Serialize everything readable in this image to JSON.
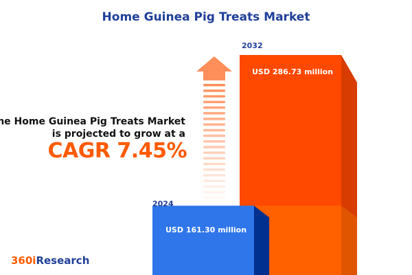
{
  "title": "Home Guinea Pig Treats Market",
  "description_line1": "The Home Guinea Pig Treats Market",
  "description_line2": "is projected to grow at a",
  "cagr_label": "CAGR 7.45%",
  "logo": {
    "part1": "360i",
    "part2": "Research"
  },
  "colors": {
    "title": "#1f3f99",
    "bar_2024": "#2f76ea",
    "bar_2032": "#ff4800",
    "accent": "#ff5a00"
  },
  "chart_data": {
    "type": "bar",
    "title": "Home Guinea Pig Treats Market",
    "categories": [
      "2024",
      "2032"
    ],
    "values": [
      161.3,
      286.73
    ],
    "unit": "USD million",
    "data_labels": [
      "USD 161.30 million",
      "USD 286.73 million"
    ],
    "cagr": "7.45%"
  }
}
